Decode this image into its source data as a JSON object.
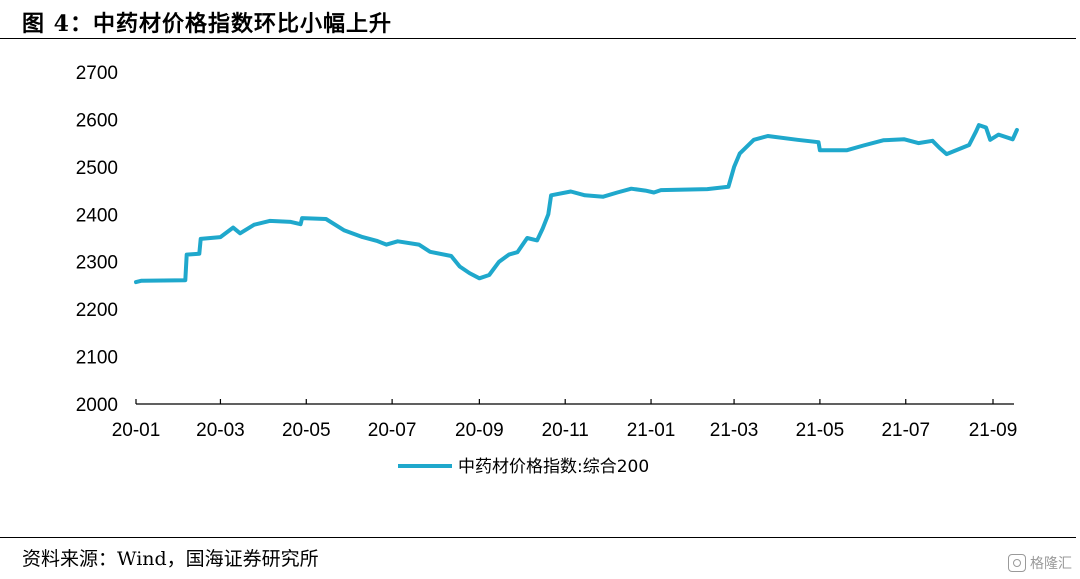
{
  "figure": {
    "title": "图 4：中药材价格指数环比小幅上升",
    "source": "资料来源：Wind，国海证券研究所",
    "watermark": "格隆汇"
  },
  "chart_data": {
    "type": "line",
    "title": "",
    "xlabel": "",
    "ylabel": "",
    "ylim": [
      2000,
      2700
    ],
    "yticks": [
      2000,
      2100,
      2200,
      2300,
      2400,
      2500,
      2600,
      2700
    ],
    "xticks": [
      "20-01",
      "20-03",
      "20-05",
      "20-07",
      "20-09",
      "20-11",
      "21-01",
      "21-03",
      "21-05",
      "21-07",
      "21-09"
    ],
    "grid": false,
    "legend": "bottom",
    "color": "#1fa8cc",
    "series": [
      {
        "name": "中药材价格指数:综合200",
        "points": [
          [
            "2020-01-01",
            2257
          ],
          [
            "2020-01-05",
            2260
          ],
          [
            "2020-02-05",
            2261
          ],
          [
            "2020-02-06",
            2315
          ],
          [
            "2020-02-15",
            2317
          ],
          [
            "2020-02-16",
            2348
          ],
          [
            "2020-03-01",
            2352
          ],
          [
            "2020-03-10",
            2372
          ],
          [
            "2020-03-15",
            2360
          ],
          [
            "2020-03-25",
            2378
          ],
          [
            "2020-04-05",
            2386
          ],
          [
            "2020-04-20",
            2384
          ],
          [
            "2020-04-27",
            2379
          ],
          [
            "2020-04-28",
            2392
          ],
          [
            "2020-05-15",
            2390
          ],
          [
            "2020-05-28",
            2366
          ],
          [
            "2020-06-10",
            2352
          ],
          [
            "2020-06-20",
            2344
          ],
          [
            "2020-06-27",
            2336
          ],
          [
            "2020-07-05",
            2343
          ],
          [
            "2020-07-20",
            2336
          ],
          [
            "2020-07-28",
            2321
          ],
          [
            "2020-08-12",
            2312
          ],
          [
            "2020-08-18",
            2290
          ],
          [
            "2020-08-25",
            2276
          ],
          [
            "2020-09-01",
            2265
          ],
          [
            "2020-09-08",
            2272
          ],
          [
            "2020-09-15",
            2300
          ],
          [
            "2020-09-22",
            2315
          ],
          [
            "2020-09-28",
            2320
          ],
          [
            "2020-10-05",
            2350
          ],
          [
            "2020-10-12",
            2345
          ],
          [
            "2020-10-16",
            2370
          ],
          [
            "2020-10-20",
            2400
          ],
          [
            "2020-10-22",
            2440
          ],
          [
            "2020-11-05",
            2448
          ],
          [
            "2020-11-15",
            2440
          ],
          [
            "2020-11-28",
            2437
          ],
          [
            "2020-12-08",
            2446
          ],
          [
            "2020-12-18",
            2454
          ],
          [
            "2020-12-28",
            2450
          ],
          [
            "2021-01-03",
            2446
          ],
          [
            "2021-01-08",
            2451
          ],
          [
            "2021-02-10",
            2453
          ],
          [
            "2021-02-25",
            2458
          ],
          [
            "2021-03-01",
            2500
          ],
          [
            "2021-03-05",
            2528
          ],
          [
            "2021-03-15",
            2557
          ],
          [
            "2021-03-25",
            2565
          ],
          [
            "2021-04-15",
            2557
          ],
          [
            "2021-04-30",
            2552
          ],
          [
            "2021-05-01",
            2535
          ],
          [
            "2021-05-20",
            2535
          ],
          [
            "2021-06-01",
            2545
          ],
          [
            "2021-06-15",
            2556
          ],
          [
            "2021-06-30",
            2558
          ],
          [
            "2021-07-10",
            2550
          ],
          [
            "2021-07-20",
            2555
          ],
          [
            "2021-07-25",
            2540
          ],
          [
            "2021-07-30",
            2527
          ],
          [
            "2021-08-15",
            2546
          ],
          [
            "2021-08-20",
            2575
          ],
          [
            "2021-08-22",
            2588
          ],
          [
            "2021-08-27",
            2583
          ],
          [
            "2021-08-30",
            2557
          ],
          [
            "2021-09-05",
            2568
          ],
          [
            "2021-09-15",
            2558
          ],
          [
            "2021-09-18",
            2578
          ]
        ]
      }
    ]
  }
}
